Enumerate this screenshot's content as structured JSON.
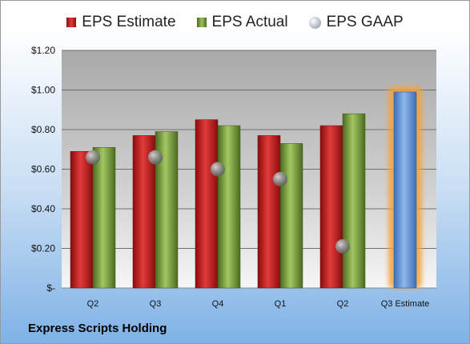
{
  "chart_data": {
    "type": "bar",
    "title": "",
    "xlabel": "",
    "ylabel": "",
    "categories": [
      "Q2",
      "Q3",
      "Q4",
      "Q1",
      "Q2",
      "Q3 Estimate"
    ],
    "y_ticks": [
      "$-",
      "$0.20",
      "$0.40",
      "$0.60",
      "$0.80",
      "$1.00",
      "$1.20"
    ],
    "ylim": [
      0,
      1.2
    ],
    "grid": true,
    "legend_position": "top",
    "series": [
      {
        "name": "EPS Estimate",
        "type": "bar",
        "color": "#c42020",
        "values": [
          0.69,
          0.77,
          0.85,
          0.77,
          0.82,
          null
        ]
      },
      {
        "name": "EPS Actual",
        "type": "bar",
        "color": "#7a9a3a",
        "values": [
          0.71,
          0.79,
          0.82,
          0.73,
          0.88,
          0.99
        ]
      },
      {
        "name": "EPS GAAP",
        "type": "marker",
        "color": "#9aa4ae",
        "values": [
          0.66,
          0.66,
          0.6,
          0.55,
          0.21,
          null
        ]
      }
    ],
    "highlight": {
      "category_index": 5,
      "bar_color": "#5b8fd4",
      "glow_color": "#f5a23a"
    }
  },
  "footer": {
    "company": "Express Scripts Holding"
  }
}
